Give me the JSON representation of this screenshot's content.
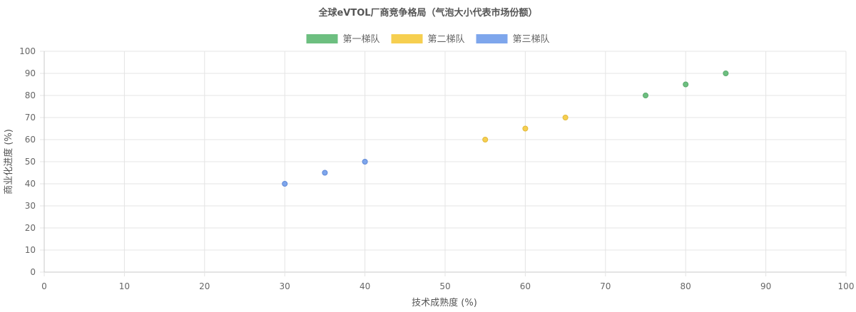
{
  "chart_data": {
    "type": "scatter",
    "title": "全球eVTOL厂商竞争格局（气泡大小代表市场份额）",
    "xlabel": "技术成熟度 (%)",
    "ylabel": "商业化进度 (%)",
    "xlim": [
      0,
      100
    ],
    "ylim": [
      0,
      100
    ],
    "x_ticks": [
      0,
      10,
      20,
      30,
      40,
      50,
      60,
      70,
      80,
      90,
      100
    ],
    "y_ticks": [
      0,
      10,
      20,
      30,
      40,
      50,
      60,
      70,
      80,
      90,
      100
    ],
    "grid": true,
    "legend_position": "top",
    "series": [
      {
        "name": "第一梯队",
        "color": "#6dbf80",
        "stroke": "#5aa96c",
        "points": [
          {
            "x": 75,
            "y": 80
          },
          {
            "x": 80,
            "y": 85
          },
          {
            "x": 85,
            "y": 90
          }
        ]
      },
      {
        "name": "第二梯队",
        "color": "#f6cf50",
        "stroke": "#e2b93a",
        "points": [
          {
            "x": 55,
            "y": 60
          },
          {
            "x": 60,
            "y": 65
          },
          {
            "x": 65,
            "y": 70
          }
        ]
      },
      {
        "name": "第三梯队",
        "color": "#7ea6ec",
        "stroke": "#5f88d6",
        "points": [
          {
            "x": 30,
            "y": 40
          },
          {
            "x": 35,
            "y": 45
          },
          {
            "x": 40,
            "y": 50
          }
        ]
      }
    ]
  }
}
